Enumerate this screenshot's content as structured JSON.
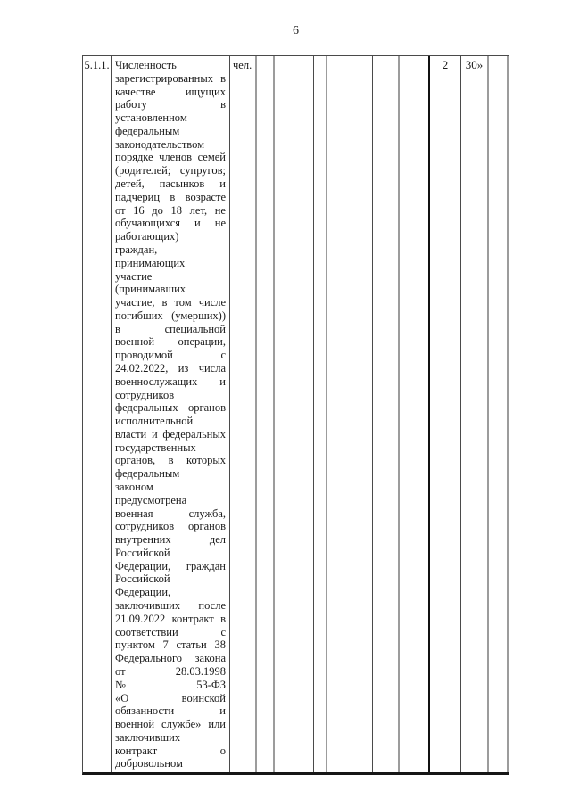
{
  "page": {
    "number": "6"
  },
  "table": {
    "row": {
      "index": "5.1.1.",
      "unit": "чел.",
      "value_plan": "2",
      "value_target": "30»",
      "indicator_lines": [
        "Численность",
        "зарегистрированных в",
        "качестве ищущих",
        "работу в",
        "установленном",
        "федеральным",
        "законодательством",
        "порядке членов семей",
        "(родителей; супругов;",
        "детей, пасынков и",
        "падчериц в возрасте",
        "от 16 до 18 лет, не",
        "обучающихся и не",
        "работающих)",
        "граждан,",
        "принимающих",
        "участие",
        "(принимавших",
        "участие, в том числе",
        "погибших (умерших))",
        "в специальной",
        "военной операции,",
        "проводимой с",
        "24.02.2022, из числа",
        "военнослужащих и",
        "сотрудников",
        "федеральных органов",
        "исполнительной",
        "власти и федеральных",
        "государственных",
        "органов, в которых",
        "федеральным",
        "законом",
        "предусмотрена",
        "военная служба,",
        "сотрудников органов",
        "внутренних дел",
        "Российской",
        "Федерации, граждан",
        "Российской",
        "Федерации,",
        "заключивших после",
        "21.09.2022 контракт в",
        "соответствии с",
        "пунктом 7 статьи 38",
        "Федерального закона",
        "от 28.03.1998",
        "№ 53-ФЗ",
        "«О воинской",
        "обязанности и",
        "военной службе» или",
        "заключивших",
        "контракт о",
        "добровольном"
      ]
    }
  },
  "colors": {
    "background": "#ffffff",
    "text": "#1b1b1b",
    "border_thin": "#4a4a4a",
    "border_gray": "#9c9c9c",
    "border_strong": "#111111"
  }
}
